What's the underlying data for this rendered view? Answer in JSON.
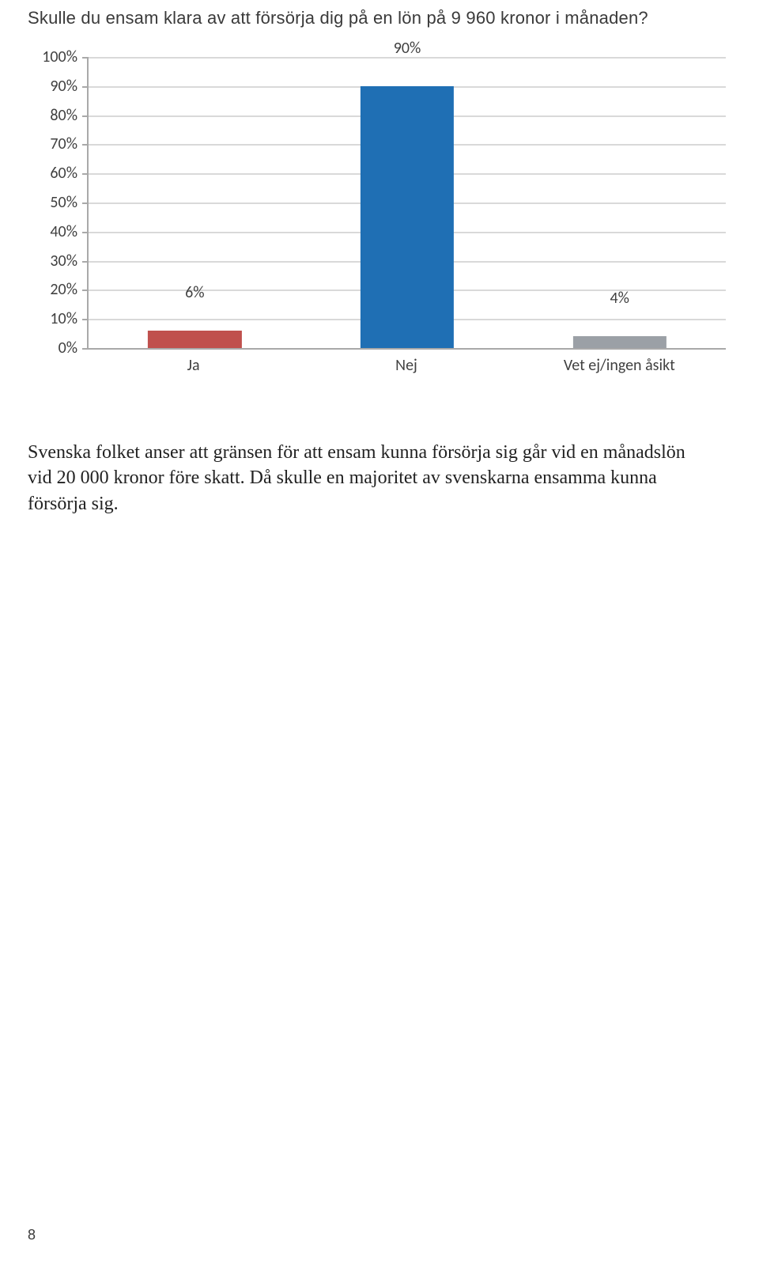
{
  "page": {
    "title": "Skulle du ensam klara av att försörja dig på en lön på 9 960 kronor i månaden?",
    "body_paragraph": "Svenska folket anser att gränsen för att ensam kunna försörja sig går vid en månadslön vid 20 000 kronor före skatt. Då skulle en majoritet av svenskarna ensamma kunna försörja sig.",
    "page_number": "8"
  },
  "chart": {
    "type": "bar",
    "background_color": "#ffffff",
    "axis_color": "#a9a9a9",
    "grid_color": "#d9d9d9",
    "label_color": "#404040",
    "label_fontsize": 20,
    "ylim": [
      0,
      100
    ],
    "ytick_step": 10,
    "ytick_suffix": "%",
    "value_label_suffix": "%",
    "bar_width_pct": 44,
    "categories": [
      "Ja",
      "Nej",
      "Vet ej/ingen åsikt"
    ],
    "values": [
      6,
      90,
      4
    ],
    "bar_colors": [
      "#c0504d",
      "#1f6fb4",
      "#9ba0a6"
    ]
  }
}
